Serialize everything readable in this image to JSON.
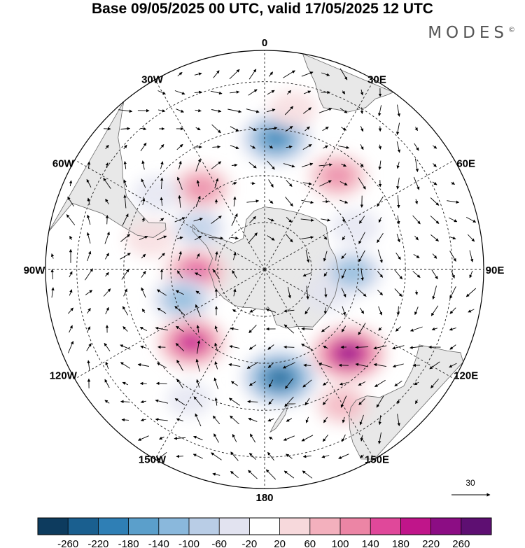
{
  "title": "Base 09/05/2025 00 UTC, valid 17/05/2025 12 UTC",
  "brand": "MODES",
  "brand_mark": "©",
  "longitude_labels": [
    "0",
    "30E",
    "60E",
    "90E",
    "120E",
    "150E",
    "180",
    "150W",
    "120W",
    "90W",
    "60W",
    "30W"
  ],
  "reference_vector": {
    "value": "30"
  },
  "colorbar": {
    "ticks": [
      "-260",
      "-220",
      "-180",
      "-140",
      "-100",
      "-60",
      "-20",
      "20",
      "60",
      "100",
      "140",
      "180",
      "220",
      "260"
    ],
    "colors": [
      "#0d3b5e",
      "#1a5f8f",
      "#2f7fb5",
      "#5b9fcb",
      "#8ab8dc",
      "#b9cde6",
      "#e2e3f0",
      "#ffffff",
      "#f7d9dc",
      "#f3b0bd",
      "#ec85a5",
      "#e0489a",
      "#c0158a",
      "#8c0d84",
      "#5e0f72"
    ]
  },
  "anomaly_centers": [
    {
      "lon": 5,
      "lat": -48,
      "value": -200
    },
    {
      "lon": 38,
      "lat": -52,
      "value": 140
    },
    {
      "lon": 10,
      "lat": -38,
      "value": 60
    },
    {
      "lon": -38,
      "lat": -57,
      "value": 140
    },
    {
      "lon": -55,
      "lat": -48,
      "value": -60
    },
    {
      "lon": -58,
      "lat": -65,
      "value": -100
    },
    {
      "lon": -92,
      "lat": -68,
      "value": 160
    },
    {
      "lon": -110,
      "lat": -62,
      "value": -140
    },
    {
      "lon": -135,
      "lat": -57,
      "value": 200
    },
    {
      "lon": 172,
      "lat": -55,
      "value": -240
    },
    {
      "lon": 135,
      "lat": -52,
      "value": 240
    },
    {
      "lon": 110,
      "lat": -68,
      "value": -60
    },
    {
      "lon": 92,
      "lat": -62,
      "value": -140
    },
    {
      "lon": 65,
      "lat": -58,
      "value": -60
    },
    {
      "lon": 150,
      "lat": -40,
      "value": 100
    },
    {
      "lon": -150,
      "lat": -42,
      "value": -40
    },
    {
      "lon": -75,
      "lat": -52,
      "value": 60
    }
  ],
  "land_masses": [
    "Antarctica",
    "South America",
    "Africa",
    "Australia",
    "New Zealand"
  ]
}
